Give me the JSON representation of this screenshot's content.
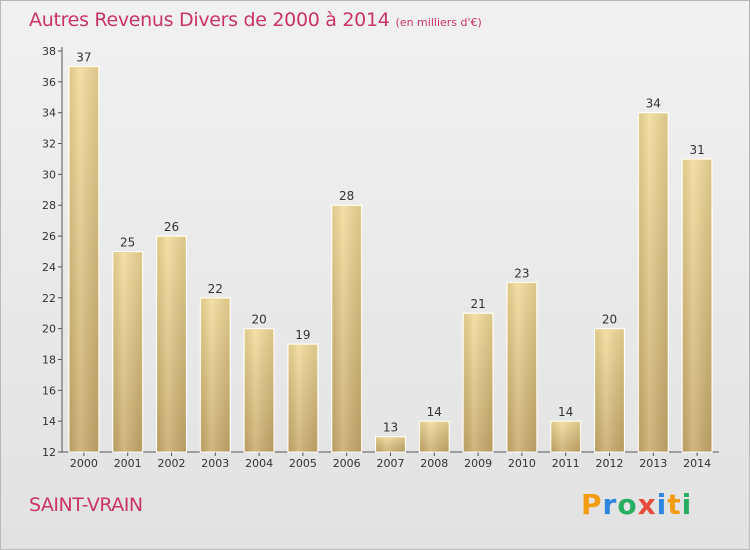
{
  "chart_data": {
    "type": "bar",
    "title": "Autres Revenus Divers de 2000 à 2014",
    "subtitle": "(en milliers d'€)",
    "categories": [
      "2000",
      "2001",
      "2002",
      "2003",
      "2004",
      "2005",
      "2006",
      "2007",
      "2008",
      "2009",
      "2010",
      "2011",
      "2012",
      "2013",
      "2014"
    ],
    "values": [
      37,
      25,
      26,
      22,
      20,
      19,
      28,
      13,
      14,
      21,
      23,
      14,
      20,
      34,
      31
    ],
    "ylim": [
      12,
      38
    ],
    "yticks": [
      12,
      14,
      16,
      18,
      20,
      22,
      24,
      26,
      28,
      30,
      32,
      34,
      36,
      38
    ],
    "grid": false,
    "bar_color": "#e6cc87",
    "title_color": "#cc3366"
  },
  "footer": {
    "place_name": "SAINT-VRAIN",
    "logo_text": "Proxiti",
    "logo_colors": [
      "#f39c12",
      "#2e86de",
      "#27ae60",
      "#e74c3c",
      "#2e86de",
      "#f39c12",
      "#27ae60"
    ]
  }
}
